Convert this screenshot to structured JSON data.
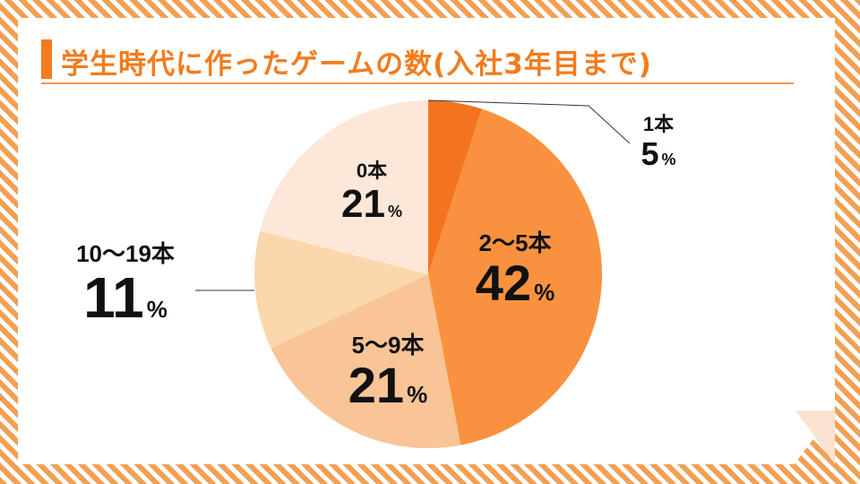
{
  "title": "学生時代に作ったゲームの数(入社3年目まで)",
  "colors": {
    "accent": "#f37b1d",
    "stripe": "#f1a054"
  },
  "chart_data": {
    "type": "pie",
    "title": "学生時代に作ったゲームの数(入社3年目まで)",
    "unit": "%",
    "start": "12 o'clock, clockwise",
    "slices": [
      {
        "label": "1本",
        "value": 5,
        "color": "#f47320"
      },
      {
        "label": "2～5本",
        "value": 42,
        "color": "#f9923f"
      },
      {
        "label": "5～9本",
        "value": 21,
        "color": "#f9c496"
      },
      {
        "label": "10～19本",
        "value": 11,
        "color": "#fad8ac"
      },
      {
        "label": "0本",
        "value": 21,
        "color": "#fde7d8"
      }
    ]
  }
}
